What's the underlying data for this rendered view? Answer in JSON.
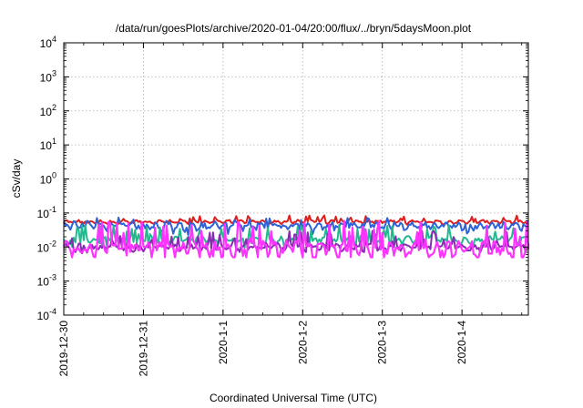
{
  "chart_data": {
    "type": "line",
    "title": "/data/run/goesPlots/archive/2020-01-04/20:00/flux/../bryn/5daysMoon.plot",
    "xlabel": "Coordinated Universal Time (UTC)",
    "ylabel": "cSv/day",
    "yscale": "log",
    "ylim": [
      0.0001,
      10000
    ],
    "y_ticks": [
      {
        "value": 0.0001,
        "base": "10",
        "exp": "-4"
      },
      {
        "value": 0.001,
        "base": "10",
        "exp": "-3"
      },
      {
        "value": 0.01,
        "base": "10",
        "exp": "-2"
      },
      {
        "value": 0.1,
        "base": "10",
        "exp": "-1"
      },
      {
        "value": 1,
        "base": "10",
        "exp": "0"
      },
      {
        "value": 10,
        "base": "10",
        "exp": "1"
      },
      {
        "value": 100,
        "base": "10",
        "exp": "2"
      },
      {
        "value": 1000,
        "base": "10",
        "exp": "3"
      },
      {
        "value": 10000,
        "base": "10",
        "exp": "4"
      }
    ],
    "xlim": [
      "2019-12-30",
      "2020-01-04 20:00"
    ],
    "x_tick_labels": [
      "2019-12-30",
      "2019-12-31",
      "2020-1-1",
      "2020-1-2",
      "2020-1-3",
      "2020-1-4"
    ],
    "grid": true,
    "series": [
      {
        "color": "#dd1f1f",
        "level": 0.055,
        "var": 0.008,
        "low": 0.045,
        "high": 0.085
      },
      {
        "color": "#2d63d6",
        "level": 0.042,
        "var": 0.012,
        "low": 0.022,
        "high": 0.075
      },
      {
        "color": "#23b98f",
        "level": 0.016,
        "var": 0.005,
        "low": 0.009,
        "high": 0.045
      },
      {
        "color": "#8a2bb3",
        "level": 0.01,
        "var": 0.003,
        "low": 0.006,
        "high": 0.03
      },
      {
        "color": "#ff33ff",
        "level": 0.009,
        "var": 0.006,
        "low": 0.005,
        "high": 0.06
      }
    ]
  }
}
